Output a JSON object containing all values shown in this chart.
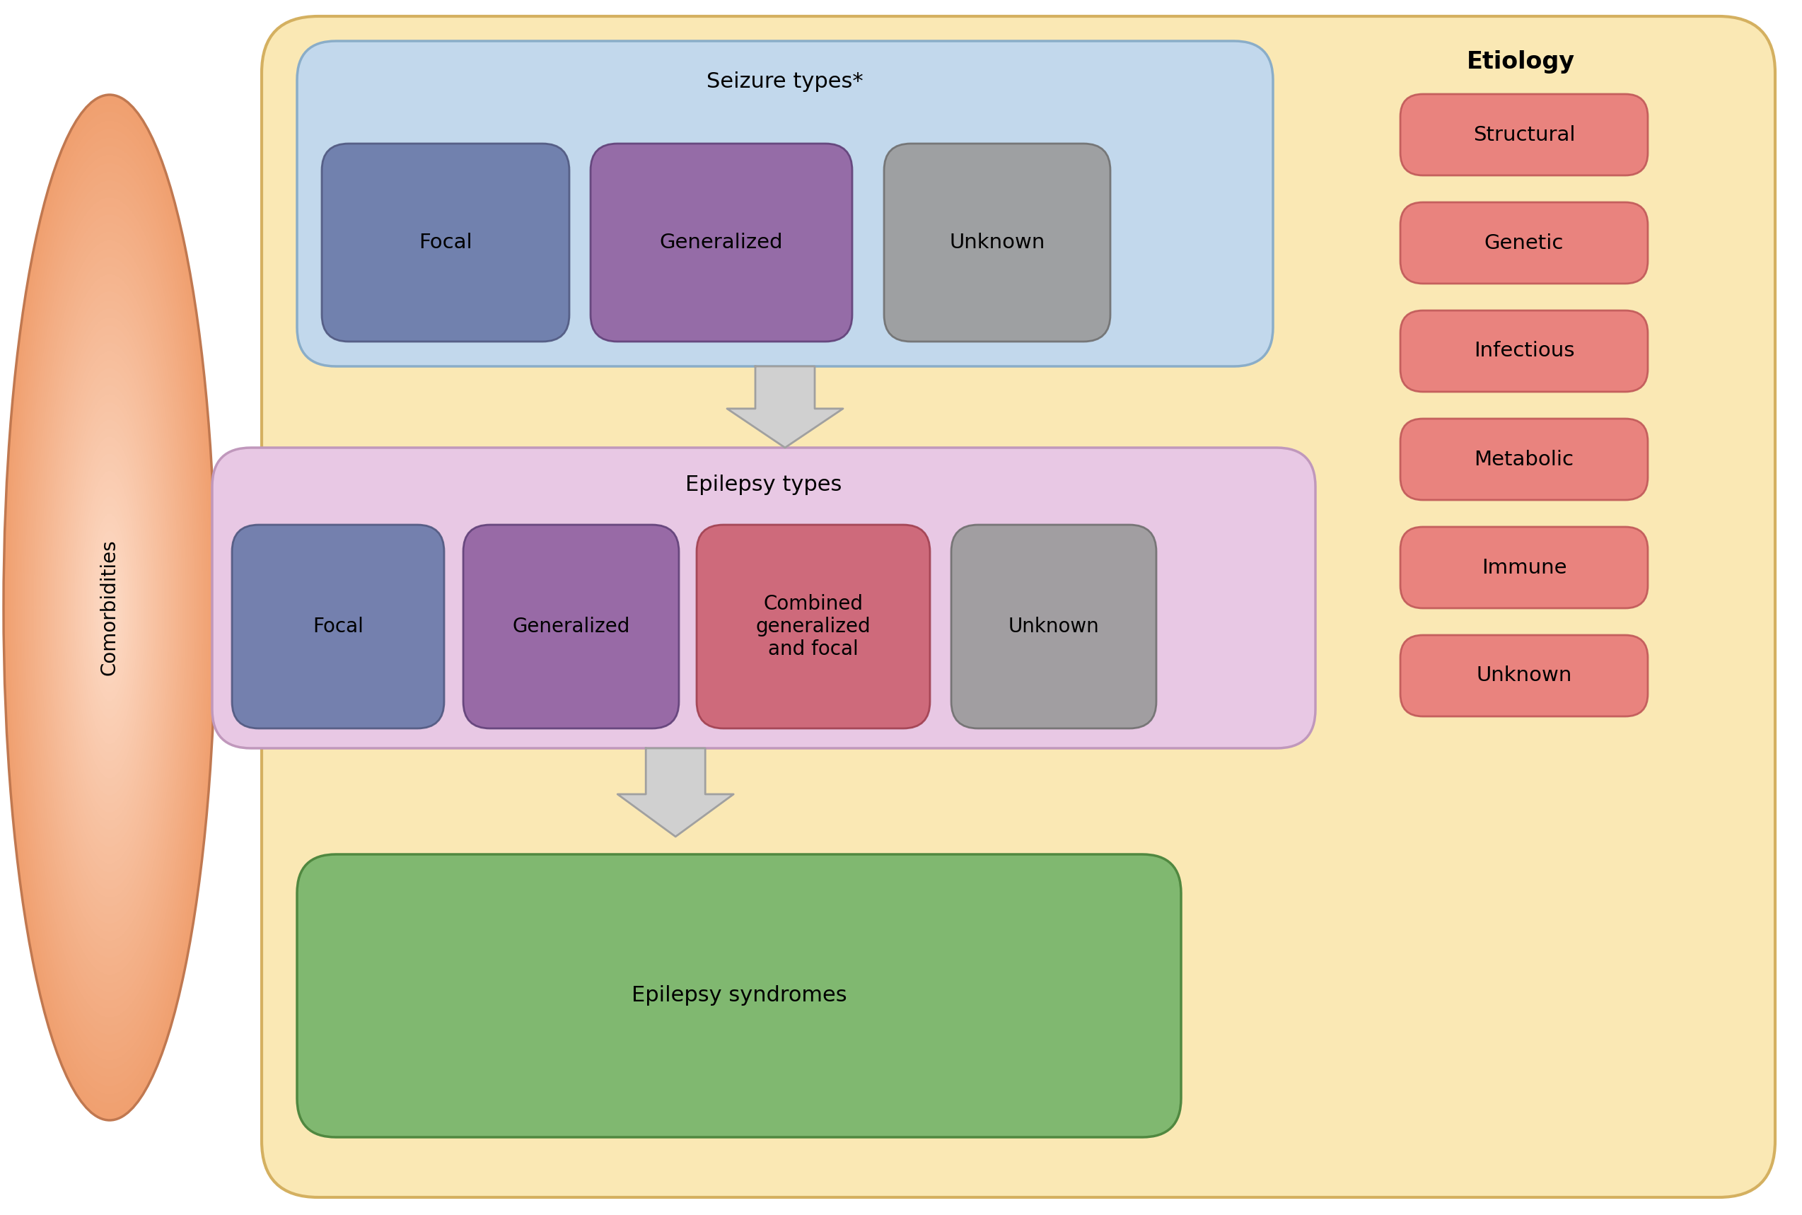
{
  "bg_color": "#FAE8B4",
  "seizure_box_bg": "#C2D8EC",
  "seizure_box_edge": "#8AADC8",
  "seizure_title": "Seizure types*",
  "seizure_subtypes": [
    "Focal",
    "Generalized",
    "Unknown"
  ],
  "seizure_subtype_colors": [
    "#6878A8",
    "#9060A0",
    "#9A9A9A"
  ],
  "seizure_subtype_edges": [
    "#505880",
    "#604078",
    "#707070"
  ],
  "epilepsy_box_bg": "#E8C8E4",
  "epilepsy_box_edge": "#C098BC",
  "epilepsy_title": "Epilepsy types",
  "epilepsy_subtypes": [
    "Focal",
    "Generalized",
    "Combined\ngeneralized\nand focal",
    "Unknown"
  ],
  "epilepsy_subtype_colors": [
    "#6878A8",
    "#9060A0",
    "#CC6070",
    "#9A9A9A"
  ],
  "epilepsy_subtype_edges": [
    "#505880",
    "#604078",
    "#A04050",
    "#707070"
  ],
  "syndrome_box_bg": "#80B870",
  "syndrome_box_edge": "#508840",
  "syndrome_title": "Epilepsy syndromes",
  "etiology_title": "Etiology",
  "etiology_items": [
    "Structural",
    "Genetic",
    "Infectious",
    "Metabolic",
    "Immune",
    "Unknown"
  ],
  "etiology_box_color": "#E87878",
  "etiology_box_edge": "#C05858",
  "comorbidities_text": "Comorbidities",
  "ellipse_color_center": "#FDDCC8",
  "ellipse_color_edge": "#F0A070",
  "ellipse_border": "#C07850",
  "arrow_fill": "#D0D0D0",
  "arrow_edge": "#A0A0A0"
}
